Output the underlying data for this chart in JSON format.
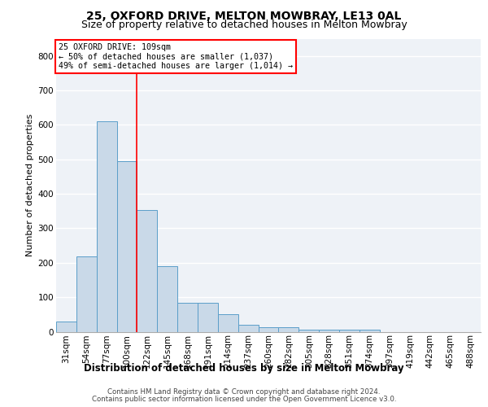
{
  "title1": "25, OXFORD DRIVE, MELTON MOWBRAY, LE13 0AL",
  "title2": "Size of property relative to detached houses in Melton Mowbray",
  "xlabel": "Distribution of detached houses by size in Melton Mowbray",
  "ylabel": "Number of detached properties",
  "categories": [
    "31sqm",
    "54sqm",
    "77sqm",
    "100sqm",
    "122sqm",
    "145sqm",
    "168sqm",
    "191sqm",
    "214sqm",
    "237sqm",
    "260sqm",
    "282sqm",
    "305sqm",
    "328sqm",
    "351sqm",
    "374sqm",
    "397sqm",
    "419sqm",
    "442sqm",
    "465sqm",
    "488sqm"
  ],
  "values": [
    30,
    218,
    610,
    495,
    352,
    190,
    84,
    84,
    50,
    19,
    13,
    13,
    7,
    7,
    7,
    7,
    0,
    0,
    0,
    0,
    0
  ],
  "bar_color": "#c9d9e8",
  "bar_edge_color": "#5a9ec9",
  "vline_x": 3.5,
  "vline_color": "red",
  "ylim": [
    0,
    850
  ],
  "yticks": [
    0,
    100,
    200,
    300,
    400,
    500,
    600,
    700,
    800
  ],
  "annotation_title": "25 OXFORD DRIVE: 109sqm",
  "annotation_line1": "← 50% of detached houses are smaller (1,037)",
  "annotation_line2": "49% of semi-detached houses are larger (1,014) →",
  "annotation_box_color": "white",
  "annotation_box_edge": "red",
  "footer1": "Contains HM Land Registry data © Crown copyright and database right 2024.",
  "footer2": "Contains public sector information licensed under the Open Government Licence v3.0.",
  "background_color": "#eef2f7",
  "grid_color": "#ffffff",
  "title1_fontsize": 10,
  "title2_fontsize": 9,
  "xlabel_fontsize": 8.5,
  "ylabel_fontsize": 8,
  "tick_fontsize": 7.5,
  "footer_fontsize": 6.2
}
